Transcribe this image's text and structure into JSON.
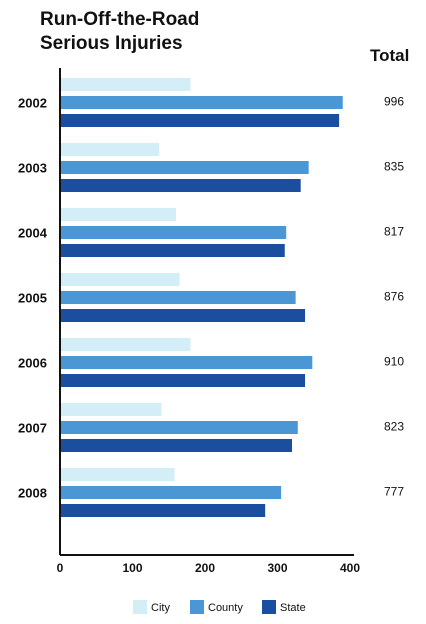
{
  "header": {
    "title_line1": "Run-Off-the-Road",
    "title_line2": "Serious Injuries",
    "total_label": "Total"
  },
  "chart_data": {
    "type": "bar",
    "orientation": "horizontal",
    "title": "Run-Off-the-Road Serious Injuries",
    "categories": [
      "2002",
      "2003",
      "2004",
      "2005",
      "2006",
      "2007",
      "2008"
    ],
    "totals": [
      "996",
      "835",
      "817",
      "876",
      "910",
      "823",
      "777"
    ],
    "series": [
      {
        "name": "City",
        "color": "#d4eef8",
        "values": [
          180,
          137,
          160,
          165,
          180,
          140,
          158
        ]
      },
      {
        "name": "County",
        "color": "#4b97d6",
        "values": [
          390,
          343,
          312,
          325,
          348,
          328,
          305
        ]
      },
      {
        "name": "State",
        "color": "#1c4ea0",
        "values": [
          385,
          332,
          310,
          338,
          338,
          320,
          283
        ]
      }
    ],
    "xlim": [
      0,
      400
    ],
    "xticks": [
      "0",
      "100",
      "200",
      "300",
      "400"
    ],
    "grid": false,
    "legend_position": "bottom"
  }
}
